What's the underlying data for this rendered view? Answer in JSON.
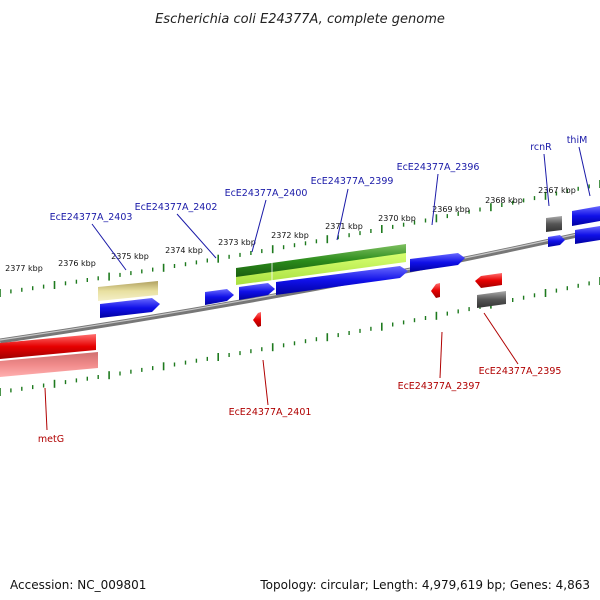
{
  "title": "Escherichia coli E24377A, complete genome",
  "footer": {
    "accession": "Accession: NC_009801",
    "summary": "Topology: circular; Length: 4,979,619 bp; Genes: 4,863"
  },
  "scale_labels": [
    "2367 kbp",
    "2368 kbp",
    "2369 kbp",
    "2370 kbp",
    "2371 kbp",
    "2372 kbp",
    "2373 kbp",
    "2374 kbp",
    "2375 kbp",
    "2376 kbp",
    "2377 kbp"
  ],
  "gene_labels": {
    "top": [
      "thiM",
      "rcnR",
      "EcE24377A_2396",
      "EcE24377A_2399",
      "EcE24377A_2400",
      "EcE24377A_2402",
      "EcE24377A_2403"
    ],
    "bottom": [
      "EcE24377A_2395",
      "EcE24377A_2397",
      "EcE24377A_2401",
      "metG"
    ]
  },
  "colors": {
    "forward_gene": "#1010e8",
    "reverse_gene": "#e60000",
    "pseudo_gene": "#e8e0a0",
    "grey_gene": "#555555",
    "rna_gene": "#2a8a1a",
    "tick": "#1e7a1e",
    "backbone": "#808080",
    "forward_label": "#1a1aa8",
    "reverse_label": "#b00000"
  }
}
